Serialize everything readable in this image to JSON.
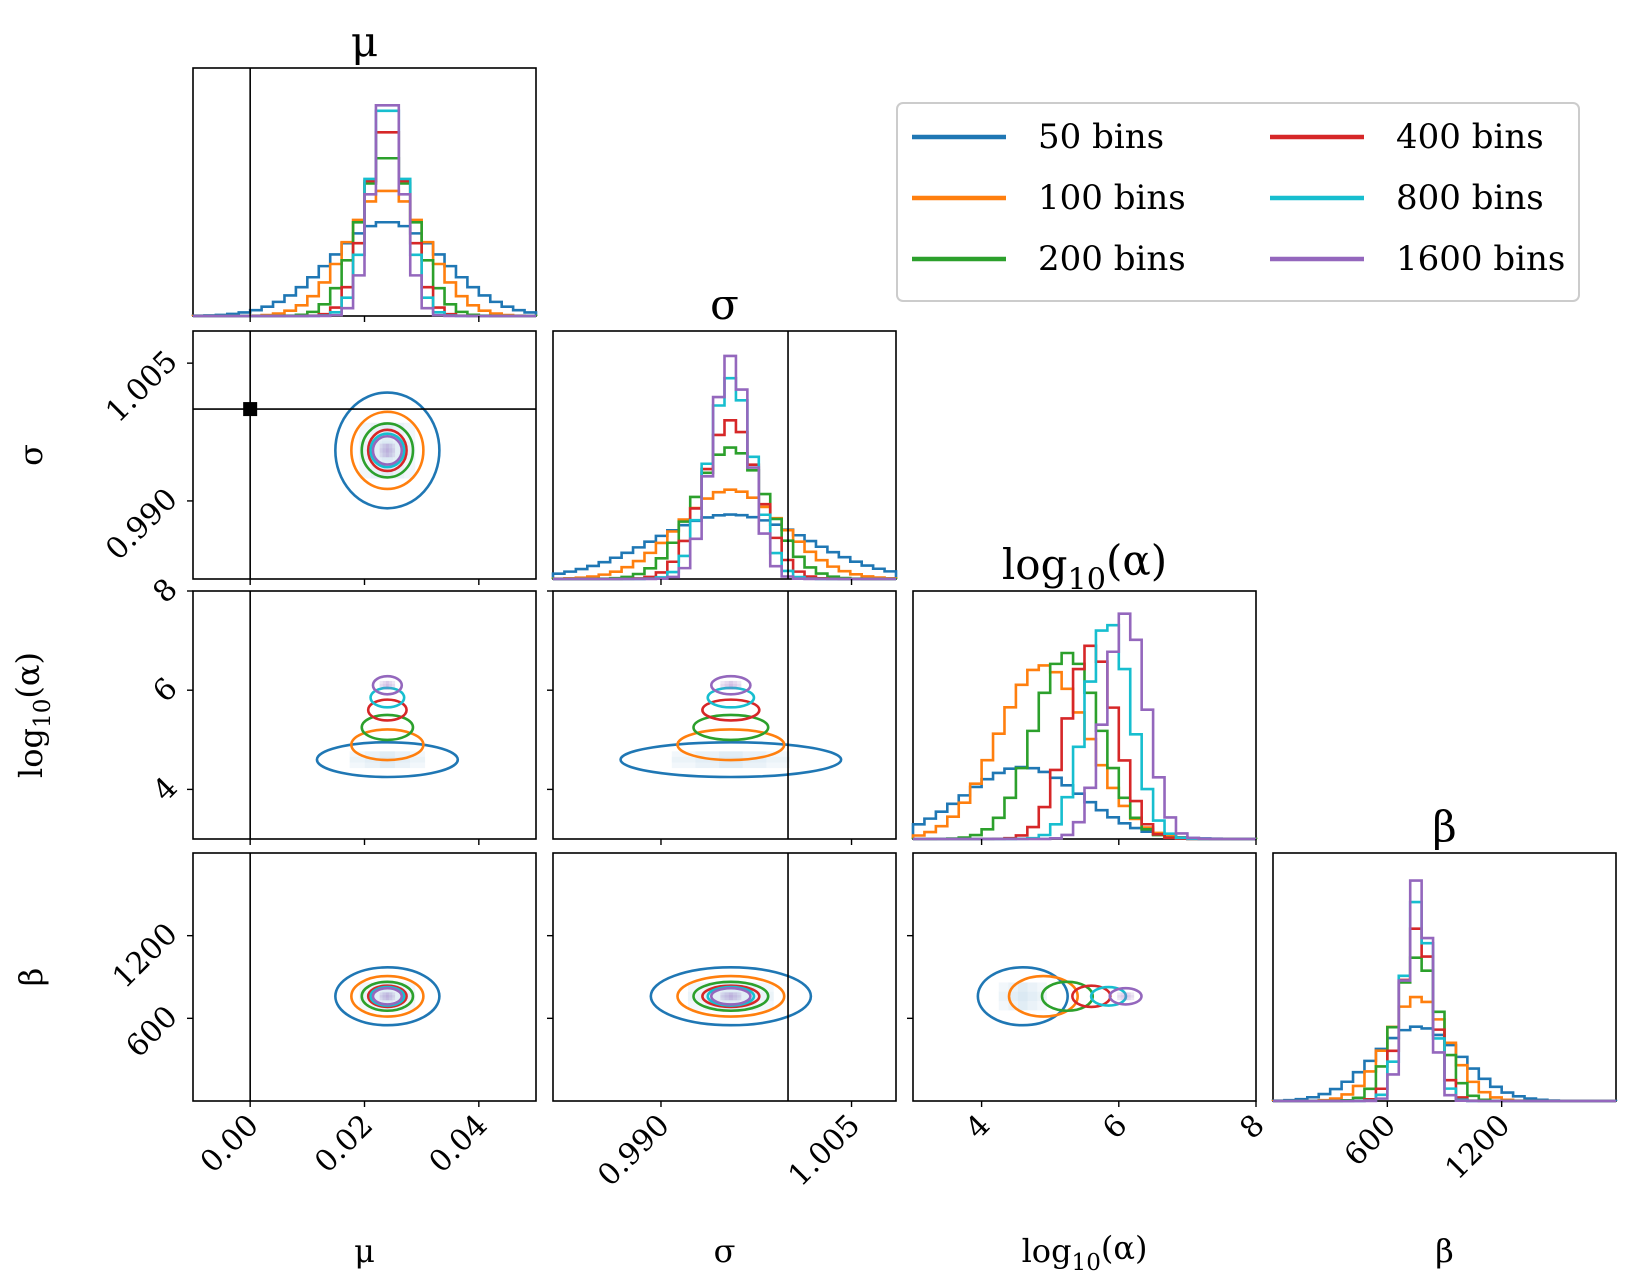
{
  "colors": {
    "50 bins": "#1f77b4",
    "100 bins": "#ff7f0e",
    "200 bins": "#2ca02c",
    "400 bins": "#d62728",
    "800 bins": "#17becf",
    "1600 bins": "#9467bd",
    "truth": "#000000"
  },
  "chart_data": {
    "type": "corner",
    "parameters": [
      {
        "key": "mu",
        "title": "μ",
        "label": "μ",
        "range": [
          -0.01,
          0.05
        ],
        "ticks": [
          "0.00",
          "0.02",
          "0.04"
        ],
        "tick_values": [
          0.0,
          0.02,
          0.04
        ]
      },
      {
        "key": "sigma",
        "title": "σ",
        "label": "σ",
        "range": [
          0.9815,
          1.0085
        ],
        "ticks": [
          "0.990",
          "1.005"
        ],
        "tick_values": [
          0.99,
          1.005
        ]
      },
      {
        "key": "log_alpha",
        "title": "log10(α)",
        "label": "log10(α)",
        "range": [
          3.0,
          8.0
        ],
        "ticks": [
          "4",
          "6",
          "8"
        ],
        "tick_values": [
          4,
          6,
          8
        ]
      },
      {
        "key": "beta",
        "title": "β",
        "label": "β",
        "range": [
          0,
          1800
        ],
        "ticks": [
          "600",
          "1200"
        ],
        "tick_values": [
          600,
          1200
        ]
      }
    ],
    "truth": {
      "mu": 0.0,
      "sigma": 1.0,
      "log_alpha": null,
      "beta": null
    },
    "legend": {
      "location": "top-right",
      "columns": 2,
      "entries": [
        "50 bins",
        "100 bins",
        "200 bins",
        "400 bins",
        "800 bins",
        "1600 bins"
      ]
    },
    "series": [
      {
        "name": "50 bins",
        "mu": 0.024,
        "mu_sd": 0.0065,
        "sigma": 0.9955,
        "sigma_sd": 0.0045,
        "log_alpha": 4.6,
        "log_alpha_sd": 0.25,
        "log_alpha_hsd": 0.85,
        "beta": 760,
        "beta_sd": 150,
        "peaks": [
          0.38,
          0.26,
          0.29,
          0.3
        ]
      },
      {
        "name": "100 bins",
        "mu": 0.024,
        "mu_sd": 0.0045,
        "sigma": 0.9955,
        "sigma_sd": 0.003,
        "log_alpha": 4.9,
        "log_alpha_sd": 0.22,
        "log_alpha_hsd": 0.65,
        "beta": 760,
        "beta_sd": 105,
        "peaks": [
          0.51,
          0.36,
          0.7,
          0.42
        ]
      },
      {
        "name": "200 bins",
        "mu": 0.024,
        "mu_sd": 0.0032,
        "sigma": 0.9955,
        "sigma_sd": 0.0021,
        "log_alpha": 5.25,
        "log_alpha_sd": 0.18,
        "log_alpha_hsd": 0.48,
        "beta": 760,
        "beta_sd": 75,
        "peaks": [
          0.65,
          0.53,
          0.75,
          0.58
        ]
      },
      {
        "name": "400 bins",
        "mu": 0.024,
        "mu_sd": 0.0024,
        "sigma": 0.9955,
        "sigma_sd": 0.0016,
        "log_alpha": 5.6,
        "log_alpha_sd": 0.15,
        "log_alpha_hsd": 0.36,
        "beta": 760,
        "beta_sd": 55,
        "peaks": [
          0.77,
          0.64,
          0.78,
          0.7
        ]
      },
      {
        "name": "800 bins",
        "mu": 0.024,
        "mu_sd": 0.0021,
        "sigma": 0.9955,
        "sigma_sd": 0.0013,
        "log_alpha": 5.85,
        "log_alpha_sd": 0.14,
        "log_alpha_hsd": 0.33,
        "beta": 760,
        "beta_sd": 48,
        "peaks": [
          0.87,
          0.81,
          0.88,
          0.81
        ]
      },
      {
        "name": "1600 bins",
        "mu": 0.024,
        "mu_sd": 0.0018,
        "sigma": 0.9955,
        "sigma_sd": 0.0011,
        "log_alpha": 6.1,
        "log_alpha_sd": 0.13,
        "log_alpha_hsd": 0.3,
        "beta": 760,
        "beta_sd": 42,
        "peaks": [
          0.91,
          0.9,
          0.91,
          0.9
        ]
      }
    ],
    "axis_titles": {
      "diagonal": [
        "μ",
        "σ",
        "log10(α)",
        "β"
      ],
      "left": [
        "σ",
        "log10(α)",
        "β"
      ],
      "bottom": [
        "μ",
        "σ",
        "log10(α)",
        "β"
      ]
    }
  }
}
